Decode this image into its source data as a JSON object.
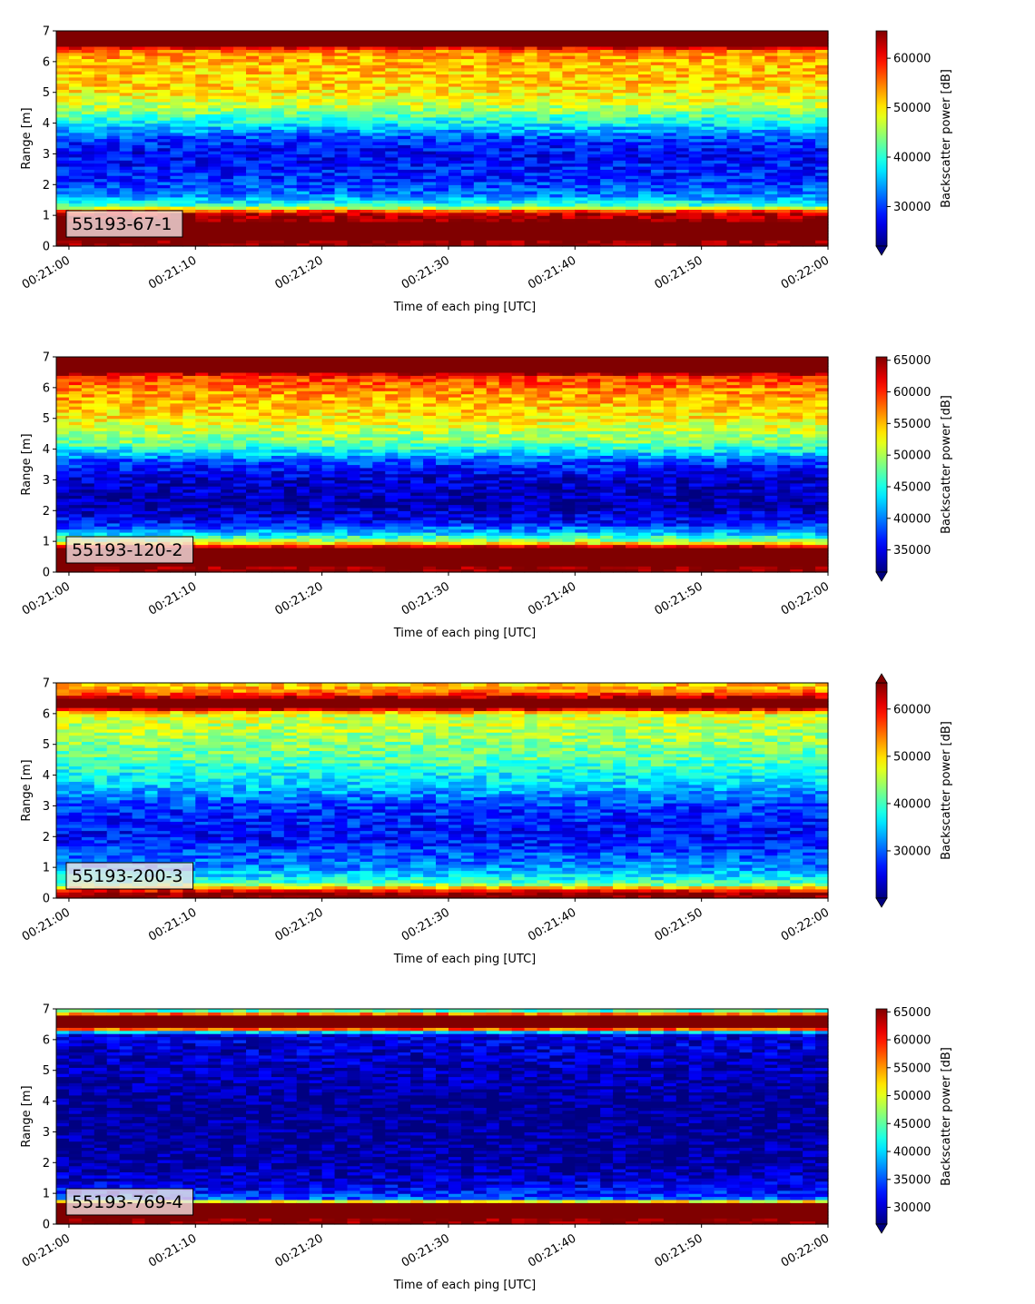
{
  "chart_data": [
    {
      "type": "heatmap",
      "label": "55193-67-1",
      "xlabel": "Time of each ping [UTC]",
      "ylabel": "Range [m]",
      "x_ticks": [
        "00:21:00",
        "00:21:10",
        "00:21:20",
        "00:21:30",
        "00:21:40",
        "00:21:50",
        "00:22:00"
      ],
      "xlim": [
        "00:20:59",
        "00:22:00"
      ],
      "y_ticks": [
        0,
        1,
        2,
        3,
        4,
        5,
        6,
        7
      ],
      "ylim": [
        0,
        7
      ],
      "colorbar": {
        "label": "Backscatter power [dB]",
        "ticks": [
          30000,
          40000,
          50000,
          60000
        ],
        "range": [
          22000,
          65535
        ],
        "extend": "min"
      },
      "profile": [
        {
          "range": 0.0,
          "value": 65535
        },
        {
          "range": 0.3,
          "value": 65535
        },
        {
          "range": 0.8,
          "value": 65535
        },
        {
          "range": 1.1,
          "value": 62000
        },
        {
          "range": 1.3,
          "value": 42000
        },
        {
          "range": 1.6,
          "value": 34000
        },
        {
          "range": 2.0,
          "value": 30000
        },
        {
          "range": 3.0,
          "value": 27000
        },
        {
          "range": 3.5,
          "value": 30000
        },
        {
          "range": 4.0,
          "value": 38000
        },
        {
          "range": 4.6,
          "value": 47000
        },
        {
          "range": 5.2,
          "value": 51000
        },
        {
          "range": 6.0,
          "value": 52000
        },
        {
          "range": 6.4,
          "value": 55000
        },
        {
          "range": 6.5,
          "value": 65535
        },
        {
          "range": 7.0,
          "value": 65535
        }
      ]
    },
    {
      "type": "heatmap",
      "label": "55193-120-2",
      "xlabel": "Time of each ping [UTC]",
      "ylabel": "Range [m]",
      "x_ticks": [
        "00:21:00",
        "00:21:10",
        "00:21:20",
        "00:21:30",
        "00:21:40",
        "00:21:50",
        "00:22:00"
      ],
      "xlim": [
        "00:20:59",
        "00:22:00"
      ],
      "y_ticks": [
        0,
        1,
        2,
        3,
        4,
        5,
        6,
        7
      ],
      "ylim": [
        0,
        7
      ],
      "colorbar": {
        "label": "Backscatter power [dB]",
        "ticks": [
          35000,
          40000,
          45000,
          50000,
          55000,
          60000,
          65000
        ],
        "range": [
          31500,
          65535
        ],
        "extend": "min"
      },
      "profile": [
        {
          "range": 0.0,
          "value": 65535
        },
        {
          "range": 0.3,
          "value": 65535
        },
        {
          "range": 0.8,
          "value": 65535
        },
        {
          "range": 1.0,
          "value": 50000
        },
        {
          "range": 1.3,
          "value": 42000
        },
        {
          "range": 1.6,
          "value": 36000
        },
        {
          "range": 2.2,
          "value": 33000
        },
        {
          "range": 3.0,
          "value": 34000
        },
        {
          "range": 3.6,
          "value": 38000
        },
        {
          "range": 4.2,
          "value": 48000
        },
        {
          "range": 5.0,
          "value": 53000
        },
        {
          "range": 6.0,
          "value": 57000
        },
        {
          "range": 6.4,
          "value": 60000
        },
        {
          "range": 6.5,
          "value": 65535
        },
        {
          "range": 7.0,
          "value": 65535
        }
      ]
    },
    {
      "type": "heatmap",
      "label": "55193-200-3",
      "xlabel": "Time of each ping [UTC]",
      "ylabel": "Range [m]",
      "x_ticks": [
        "00:21:00",
        "00:21:10",
        "00:21:20",
        "00:21:30",
        "00:21:40",
        "00:21:50",
        "00:22:00"
      ],
      "xlim": [
        "00:20:59",
        "00:22:00"
      ],
      "y_ticks": [
        0,
        1,
        2,
        3,
        4,
        5,
        6,
        7
      ],
      "ylim": [
        0,
        7
      ],
      "colorbar": {
        "label": "Backscatter power [dB]",
        "ticks": [
          30000,
          40000,
          50000,
          60000
        ],
        "range": [
          20000,
          65535
        ],
        "extend": "both"
      },
      "profile": [
        {
          "range": 0.0,
          "value": 65535
        },
        {
          "range": 0.2,
          "value": 65535
        },
        {
          "range": 0.3,
          "value": 55000
        },
        {
          "range": 0.5,
          "value": 40000
        },
        {
          "range": 1.0,
          "value": 32000
        },
        {
          "range": 2.0,
          "value": 26000
        },
        {
          "range": 3.0,
          "value": 28000
        },
        {
          "range": 3.6,
          "value": 34000
        },
        {
          "range": 4.4,
          "value": 40000
        },
        {
          "range": 5.2,
          "value": 44000
        },
        {
          "range": 6.0,
          "value": 47000
        },
        {
          "range": 6.2,
          "value": 65535
        },
        {
          "range": 6.5,
          "value": 65535
        },
        {
          "range": 6.7,
          "value": 55000
        },
        {
          "range": 7.0,
          "value": 50000
        }
      ]
    },
    {
      "type": "heatmap",
      "label": "55193-769-4",
      "xlabel": "Time of each ping [UTC]",
      "ylabel": "Range [m]",
      "x_ticks": [
        "00:21:00",
        "00:21:10",
        "00:21:20",
        "00:21:30",
        "00:21:40",
        "00:21:50",
        "00:22:00"
      ],
      "xlim": [
        "00:20:59",
        "00:22:00"
      ],
      "y_ticks": [
        0,
        1,
        2,
        3,
        4,
        5,
        6,
        7
      ],
      "ylim": [
        0,
        7
      ],
      "colorbar": {
        "label": "Backscatter power [dB]",
        "ticks": [
          30000,
          35000,
          40000,
          45000,
          50000,
          55000,
          60000,
          65000
        ],
        "range": [
          27000,
          65535
        ],
        "extend": "min"
      },
      "profile": [
        {
          "range": 0.0,
          "value": 65535
        },
        {
          "range": 0.2,
          "value": 65535
        },
        {
          "range": 0.7,
          "value": 65535
        },
        {
          "range": 0.8,
          "value": 36000
        },
        {
          "range": 1.2,
          "value": 31000
        },
        {
          "range": 2.0,
          "value": 28000
        },
        {
          "range": 4.0,
          "value": 27500
        },
        {
          "range": 5.0,
          "value": 29000
        },
        {
          "range": 6.2,
          "value": 31000
        },
        {
          "range": 6.4,
          "value": 65535
        },
        {
          "range": 6.8,
          "value": 65535
        },
        {
          "range": 6.9,
          "value": 46000
        },
        {
          "range": 7.0,
          "value": 42000
        }
      ]
    }
  ]
}
